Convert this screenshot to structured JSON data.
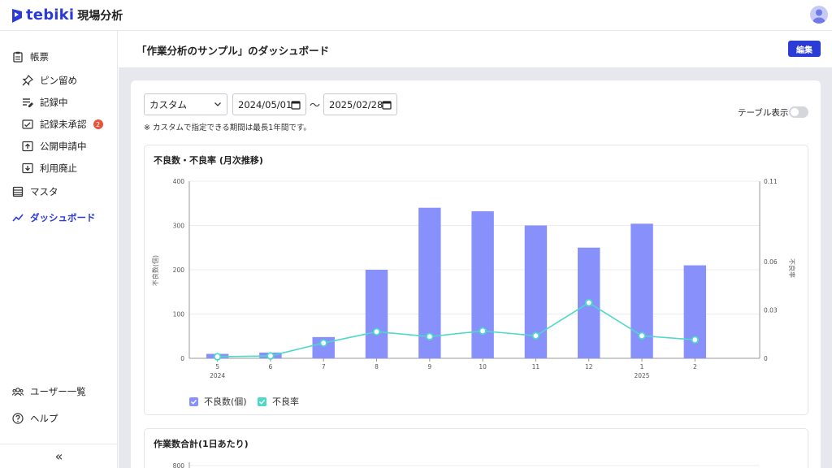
{
  "app": {
    "brand": "tebiki",
    "product": "現場分析"
  },
  "sidebar": {
    "items": [
      {
        "label": "帳票",
        "icon": "clipboard-icon"
      },
      {
        "label": "ピン留め",
        "icon": "pin-icon"
      },
      {
        "label": "記録中",
        "icon": "list-edit-icon"
      },
      {
        "label": "記録未承認",
        "icon": "approval-icon",
        "badge": "2"
      },
      {
        "label": "公開申請中",
        "icon": "upload-box-icon"
      },
      {
        "label": "利用廃止",
        "icon": "archive-icon"
      },
      {
        "label": "マスタ",
        "icon": "table-icon"
      },
      {
        "label": "ダッシュボード",
        "icon": "trend-icon"
      },
      {
        "label": "ユーザー一覧",
        "icon": "users-icon"
      },
      {
        "label": "ヘルプ",
        "icon": "help-icon"
      }
    ],
    "collapse": "«"
  },
  "header": {
    "title": "「作業分析のサンプル」のダッシュボード",
    "edit_label": "編集"
  },
  "filters": {
    "period": "カスタム",
    "start": "2024/05/01",
    "separator": "〜",
    "end": "2025/02/28",
    "note": "※ カスタムで指定できる期間は最長1年間です。",
    "table_toggle_label": "テーブル表示",
    "table_toggle_on": false
  },
  "colors": {
    "accent": "#2b3bd6",
    "bar": "#8790fb",
    "line": "#4fd8c8",
    "badge": "#e8543b"
  },
  "cards": {
    "defects_title": "不良数・不良率 (月次推移)",
    "work_title": "作業数合計(1日あたり)"
  },
  "chart_data": [
    {
      "type": "bar",
      "title": "不良数・不良率 (月次推移)",
      "categories": [
        "5",
        "6",
        "7",
        "8",
        "9",
        "10",
        "11",
        "12",
        "1",
        "2"
      ],
      "year_labels": {
        "5": "2024",
        "1": "2025"
      },
      "series": [
        {
          "name": "不良数(個)",
          "type": "bar",
          "axis": "left",
          "values": [
            10,
            13,
            48,
            200,
            340,
            332,
            300,
            250,
            304,
            210
          ]
        },
        {
          "name": "不良率",
          "type": "line",
          "axis": "right",
          "values": [
            0.001,
            0.0015,
            0.0095,
            0.0165,
            0.0135,
            0.017,
            0.014,
            0.0345,
            0.014,
            0.0115
          ]
        }
      ],
      "ylabel": "不良数(個)",
      "ylabel_right": "不良率",
      "ylim": [
        0,
        400
      ],
      "yticks": [
        0,
        100,
        200,
        300,
        400
      ],
      "ylim_right": [
        0,
        0.11
      ],
      "yticks_right": [
        0,
        0.03,
        0.06,
        0.11
      ],
      "legend": "bottom-left",
      "grid": true
    },
    {
      "type": "bar",
      "title": "作業数合計(1日あたり)",
      "yticks": [
        800
      ]
    }
  ]
}
